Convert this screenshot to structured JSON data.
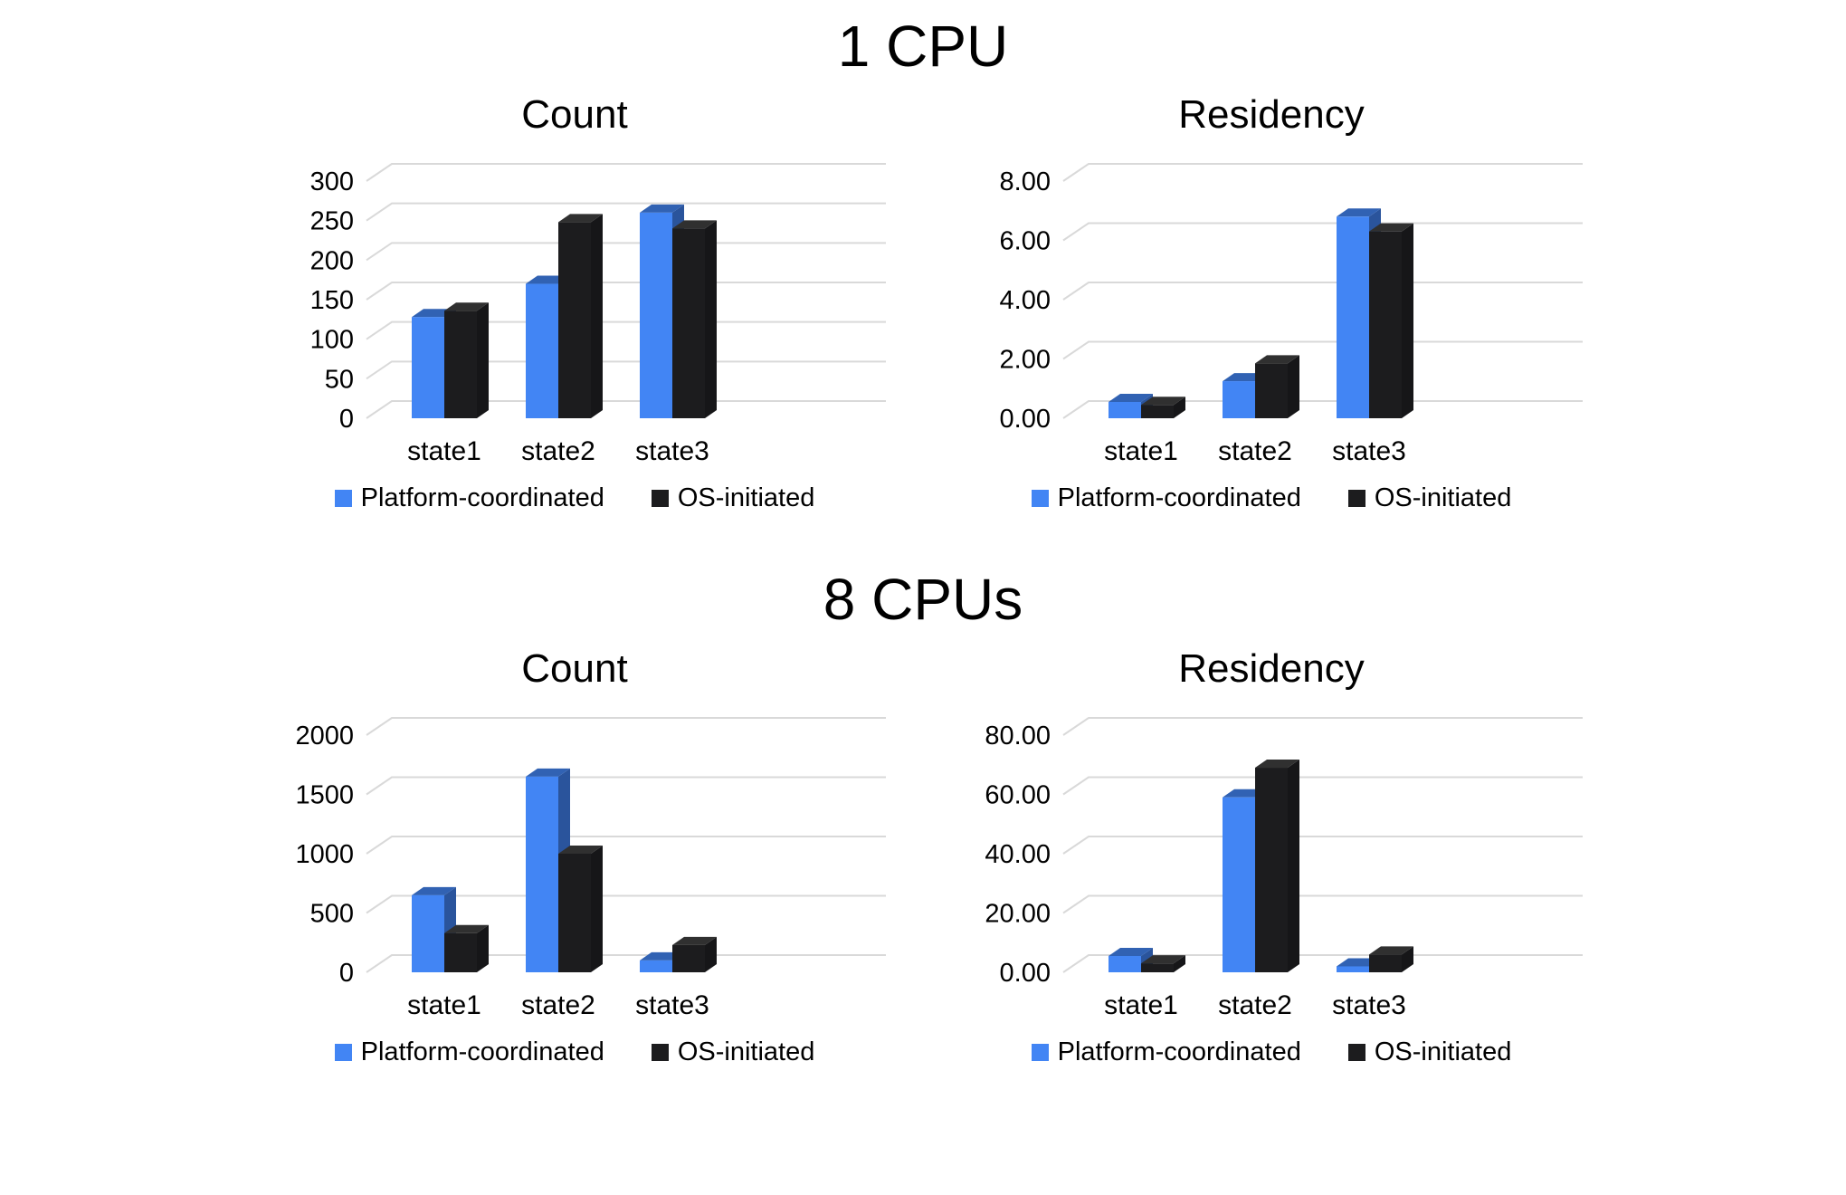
{
  "sections": [
    {
      "title": "1 CPU"
    },
    {
      "title": "8 CPUs"
    }
  ],
  "chart_data": [
    {
      "type": "bar",
      "variant": "3d-column",
      "section": "1 CPU",
      "title": "Count",
      "categories": [
        "state1",
        "state2",
        "state3"
      ],
      "series": [
        {
          "name": "Platform-coordinated",
          "color": "#4285F4",
          "color_top": "#3162B3",
          "color_side": "#2A549C",
          "values": [
            128,
            170,
            260
          ]
        },
        {
          "name": "OS-initiated",
          "color": "#1C1C1E",
          "color_top": "#303030",
          "color_side": "#161618",
          "values": [
            136,
            248,
            240
          ]
        }
      ],
      "xlabel": "",
      "ylabel": "",
      "ylim": [
        0,
        300
      ],
      "yticks": [
        0,
        50,
        100,
        150,
        200,
        250,
        300
      ],
      "ytick_labels": [
        "0",
        "50",
        "100",
        "150",
        "200",
        "250",
        "300"
      ],
      "grid": true,
      "gridline_color": "#D9D9D9",
      "legend_position": "bottom"
    },
    {
      "type": "bar",
      "variant": "3d-column",
      "section": "1 CPU",
      "title": "Residency",
      "categories": [
        "state1",
        "state2",
        "state3"
      ],
      "series": [
        {
          "name": "Platform-coordinated",
          "color": "#4285F4",
          "color_top": "#3162B3",
          "color_side": "#2A549C",
          "values": [
            0.55,
            1.25,
            6.8
          ]
        },
        {
          "name": "OS-initiated",
          "color": "#1C1C1E",
          "color_top": "#303030",
          "color_side": "#161618",
          "values": [
            0.45,
            1.85,
            6.3
          ]
        }
      ],
      "xlabel": "",
      "ylabel": "",
      "ylim": [
        0,
        8
      ],
      "yticks": [
        0,
        2,
        4,
        6,
        8
      ],
      "ytick_labels": [
        "0.00",
        "2.00",
        "4.00",
        "6.00",
        "8.00"
      ],
      "grid": true,
      "gridline_color": "#D9D9D9",
      "legend_position": "bottom"
    },
    {
      "type": "bar",
      "variant": "3d-column",
      "section": "8 CPUs",
      "title": "Count",
      "categories": [
        "state1",
        "state2",
        "state3"
      ],
      "series": [
        {
          "name": "Platform-coordinated",
          "color": "#4285F4",
          "color_top": "#3162B3",
          "color_side": "#2A549C",
          "values": [
            650,
            1650,
            100
          ]
        },
        {
          "name": "OS-initiated",
          "color": "#1C1C1E",
          "color_top": "#303030",
          "color_side": "#161618",
          "values": [
            330,
            1000,
            230
          ]
        }
      ],
      "xlabel": "",
      "ylabel": "",
      "ylim": [
        0,
        2000
      ],
      "yticks": [
        0,
        500,
        1000,
        1500,
        2000
      ],
      "ytick_labels": [
        "0",
        "500",
        "1000",
        "1500",
        "2000"
      ],
      "grid": true,
      "gridline_color": "#D9D9D9",
      "legend_position": "bottom"
    },
    {
      "type": "bar",
      "variant": "3d-column",
      "section": "8 CPUs",
      "title": "Residency",
      "categories": [
        "state1",
        "state2",
        "state3"
      ],
      "series": [
        {
          "name": "Platform-coordinated",
          "color": "#4285F4",
          "color_top": "#3162B3",
          "color_side": "#2A549C",
          "values": [
            5.5,
            59,
            2
          ]
        },
        {
          "name": "OS-initiated",
          "color": "#1C1C1E",
          "color_top": "#303030",
          "color_side": "#161618",
          "values": [
            3,
            69,
            6
          ]
        }
      ],
      "xlabel": "",
      "ylabel": "",
      "ylim": [
        0,
        80
      ],
      "yticks": [
        0,
        20,
        40,
        60,
        80
      ],
      "ytick_labels": [
        "0.00",
        "20.00",
        "40.00",
        "60.00",
        "80.00"
      ],
      "grid": true,
      "gridline_color": "#D9D9D9",
      "legend_position": "bottom"
    }
  ]
}
